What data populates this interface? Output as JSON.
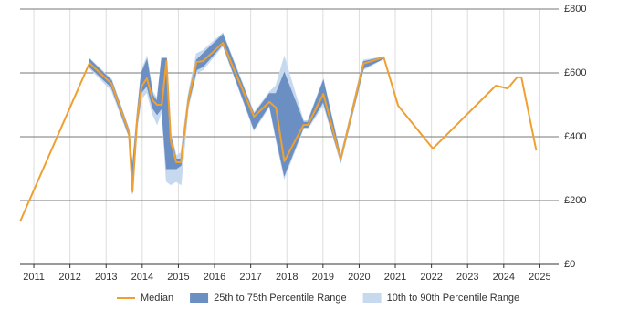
{
  "chart_data": {
    "type": "line",
    "x": [
      2010.62,
      2012.2,
      2012.54,
      2013.15,
      2013.63,
      2013.73,
      2013.86,
      2013.98,
      2014.13,
      2014.29,
      2014.41,
      2014.54,
      2014.67,
      2014.79,
      2014.94,
      2015.07,
      2015.27,
      2015.5,
      2015.68,
      2016.23,
      2017.09,
      2017.52,
      2017.7,
      2017.93,
      2018.46,
      2018.58,
      2019.01,
      2019.49,
      2020.12,
      2020.68,
      2021.08,
      2022.04,
      2023.78,
      2024.11,
      2024.37,
      2024.49,
      2024.9
    ],
    "series": [
      {
        "name": "Median",
        "color": "#f0a030",
        "values": [
          134,
          543,
          631,
          566,
          414,
          229,
          457,
          557,
          583,
          514,
          500,
          500,
          637,
          386,
          320,
          320,
          509,
          634,
          637,
          694,
          463,
          509,
          491,
          323,
          437,
          437,
          534,
          329,
          629,
          649,
          497,
          363,
          560,
          551,
          586,
          586,
          357
        ]
      }
    ],
    "bands": [
      {
        "name": "10th to 90th Percentile Range",
        "color": "#c6d9ef",
        "low": [
          null,
          null,
          615,
          545,
          400,
          220,
          430,
          520,
          540,
          470,
          440,
          480,
          260,
          250,
          260,
          250,
          490,
          600,
          610,
          685,
          420,
          495,
          390,
          270,
          425,
          425,
          500,
          320,
          610,
          645,
          null,
          null,
          null,
          null,
          null,
          null,
          null
        ],
        "high": [
          null,
          null,
          645,
          580,
          425,
          310,
          480,
          610,
          650,
          540,
          520,
          650,
          650,
          410,
          340,
          350,
          530,
          660,
          670,
          725,
          475,
          540,
          560,
          650,
          450,
          450,
          580,
          340,
          640,
          650,
          null,
          null,
          null,
          null,
          null,
          null,
          null
        ]
      },
      {
        "name": "25th to 75th Percentile Range",
        "color": "#6b8fc2",
        "low": [
          null,
          null,
          620,
          555,
          405,
          225,
          440,
          540,
          560,
          490,
          470,
          490,
          300,
          300,
          300,
          310,
          500,
          610,
          620,
          690,
          425,
          500,
          400,
          280,
          430,
          430,
          510,
          325,
          615,
          645,
          null,
          null,
          null,
          null,
          null,
          null,
          null
        ],
        "high": [
          null,
          null,
          643,
          575,
          420,
          300,
          470,
          600,
          640,
          530,
          510,
          645,
          645,
          400,
          330,
          330,
          520,
          640,
          660,
          720,
          470,
          535,
          535,
          600,
          445,
          445,
          575,
          335,
          635,
          650,
          null,
          null,
          null,
          null,
          null,
          null,
          null
        ]
      }
    ],
    "legend_order": [
      "Median",
      "25th to 75th Percentile Range",
      "10th to 90th Percentile Range"
    ],
    "xlim": [
      2010.62,
      2025.52
    ],
    "xticks": [
      2011,
      2012,
      2013,
      2014,
      2015,
      2016,
      2017,
      2018,
      2019,
      2020,
      2021,
      2022,
      2023,
      2024,
      2025
    ],
    "ylim": [
      0,
      800
    ],
    "yticks": [
      {
        "value": 0,
        "label": "£0"
      },
      {
        "value": 200,
        "label": "£200"
      },
      {
        "value": 400,
        "label": "£400"
      },
      {
        "value": 600,
        "label": "£600"
      },
      {
        "value": 800,
        "label": "£800"
      }
    ],
    "grid": true
  }
}
